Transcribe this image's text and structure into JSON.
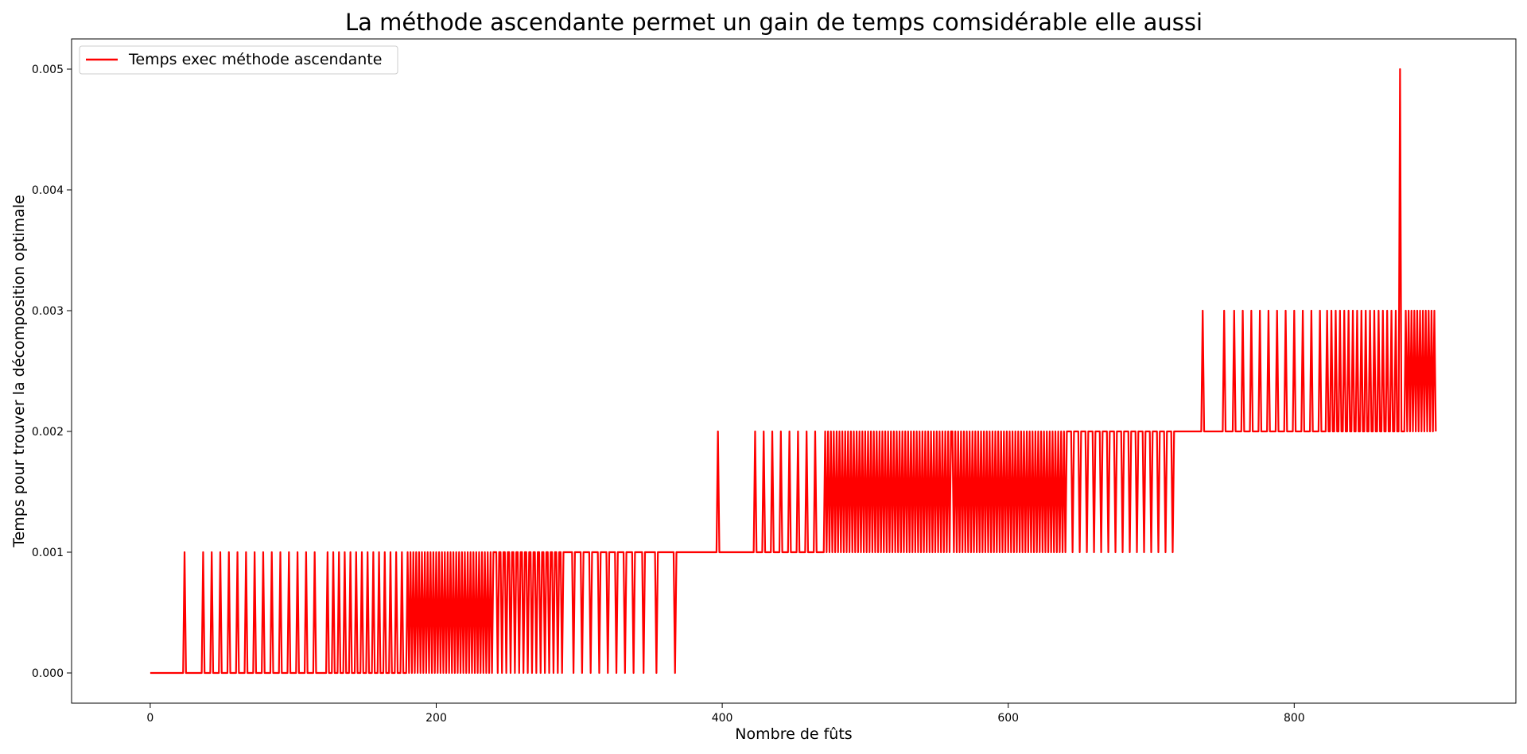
{
  "chart_data": {
    "type": "line",
    "title": "La méthode ascendante permet un gain de temps comsidérable elle aussi",
    "xlabel": "Nombre de fûts",
    "ylabel": "Temps pour trouver la décomposition optimale",
    "xlim": [
      -55,
      955
    ],
    "ylim": [
      -0.00025,
      0.00525
    ],
    "x_ticks": [
      0,
      200,
      400,
      600,
      800
    ],
    "x_tick_labels": [
      "0",
      "200",
      "400",
      "600",
      "800"
    ],
    "y_ticks": [
      0.0,
      0.001,
      0.002,
      0.003,
      0.004,
      0.005
    ],
    "y_tick_labels": [
      "0.000",
      "0.001",
      "0.002",
      "0.003",
      "0.004",
      "0.005"
    ],
    "grid": false,
    "legend_position": "upper-left",
    "series": [
      {
        "name": "Temps exec méthode ascendante",
        "color": "#ff0000",
        "x_start": 0,
        "x_step": 1,
        "segments": [
          {
            "from": 0,
            "to": 24,
            "base": 0.0,
            "spike": 0.001,
            "spike_positions": [
              24
            ]
          },
          {
            "from": 25,
            "to": 37,
            "base": 0.0,
            "spike": 0.001,
            "spike_positions": [
              37
            ]
          },
          {
            "from": 38,
            "to": 120,
            "base": 0.0,
            "spike": 0.001,
            "period": 6
          },
          {
            "from": 121,
            "to": 180,
            "base": 0.0,
            "spike": 0.001,
            "period": 4
          },
          {
            "from": 181,
            "to": 240,
            "base": 0.0,
            "spike": 0.001,
            "period": 2
          },
          {
            "from": 241,
            "to": 290,
            "base": 0.001,
            "dip": 0.0,
            "period": 3
          },
          {
            "from": 291,
            "to": 340,
            "base": 0.001,
            "dip": 0.0,
            "period": 6
          },
          {
            "from": 341,
            "to": 368,
            "base": 0.001,
            "dip": 0.0,
            "dip_positions": [
              345,
              354,
              367
            ]
          },
          {
            "from": 369,
            "to": 396,
            "base": 0.001
          },
          {
            "from": 397,
            "to": 397,
            "base": 0.002
          },
          {
            "from": 398,
            "to": 417,
            "base": 0.001
          },
          {
            "from": 418,
            "to": 470,
            "base": 0.001,
            "spike": 0.002,
            "period": 6
          },
          {
            "from": 471,
            "to": 560,
            "base": 0.001,
            "spike": 0.002,
            "period": 2
          },
          {
            "from": 561,
            "to": 640,
            "base": 0.002,
            "dip": 0.001,
            "period": 2
          },
          {
            "from": 641,
            "to": 717,
            "base": 0.002,
            "dip": 0.001,
            "period": 5
          },
          {
            "from": 718,
            "to": 752,
            "base": 0.002,
            "spike": 0.003,
            "spike_positions": [
              736,
              751,
              754
            ]
          },
          {
            "from": 753,
            "to": 820,
            "base": 0.002,
            "spike": 0.003,
            "period": 6
          },
          {
            "from": 821,
            "to": 872,
            "base": 0.002,
            "spike": 0.003,
            "period": 3
          },
          {
            "from": 873,
            "to": 876,
            "base": 0.002,
            "spike": 0.005,
            "spike_positions": [
              874
            ]
          },
          {
            "from": 877,
            "to": 899,
            "base": 0.002,
            "spike": 0.003,
            "period": 2
          }
        ]
      }
    ]
  }
}
